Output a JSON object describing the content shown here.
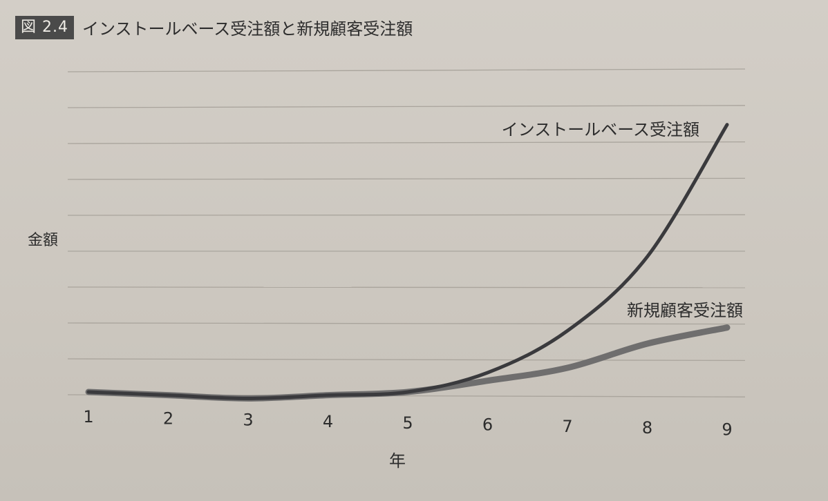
{
  "figure": {
    "badge": "図 2.4",
    "title": "インストールベース受注額と新規顧客受注額"
  },
  "chart_data": {
    "type": "line",
    "title": "インストールベース受注額と新規顧客受注額",
    "xlabel": "年",
    "ylabel": "金額",
    "categories": [
      "1",
      "2",
      "3",
      "4",
      "5",
      "6",
      "7",
      "8",
      "9"
    ],
    "x": [
      1,
      2,
      3,
      4,
      5,
      6,
      7,
      8,
      9
    ],
    "ylim": [
      0,
      9
    ],
    "grid": true,
    "series": [
      {
        "name": "インストールベース受注額",
        "values": [
          0.0,
          -0.1,
          -0.2,
          -0.1,
          0.0,
          0.6,
          1.9,
          4.2,
          8.3
        ],
        "color": "#3a3a3d"
      },
      {
        "name": "新規顧客受注額",
        "values": [
          0.0,
          -0.1,
          -0.2,
          -0.1,
          0.0,
          0.35,
          0.75,
          1.5,
          2.0
        ],
        "color": "#6f6e6e"
      }
    ]
  }
}
